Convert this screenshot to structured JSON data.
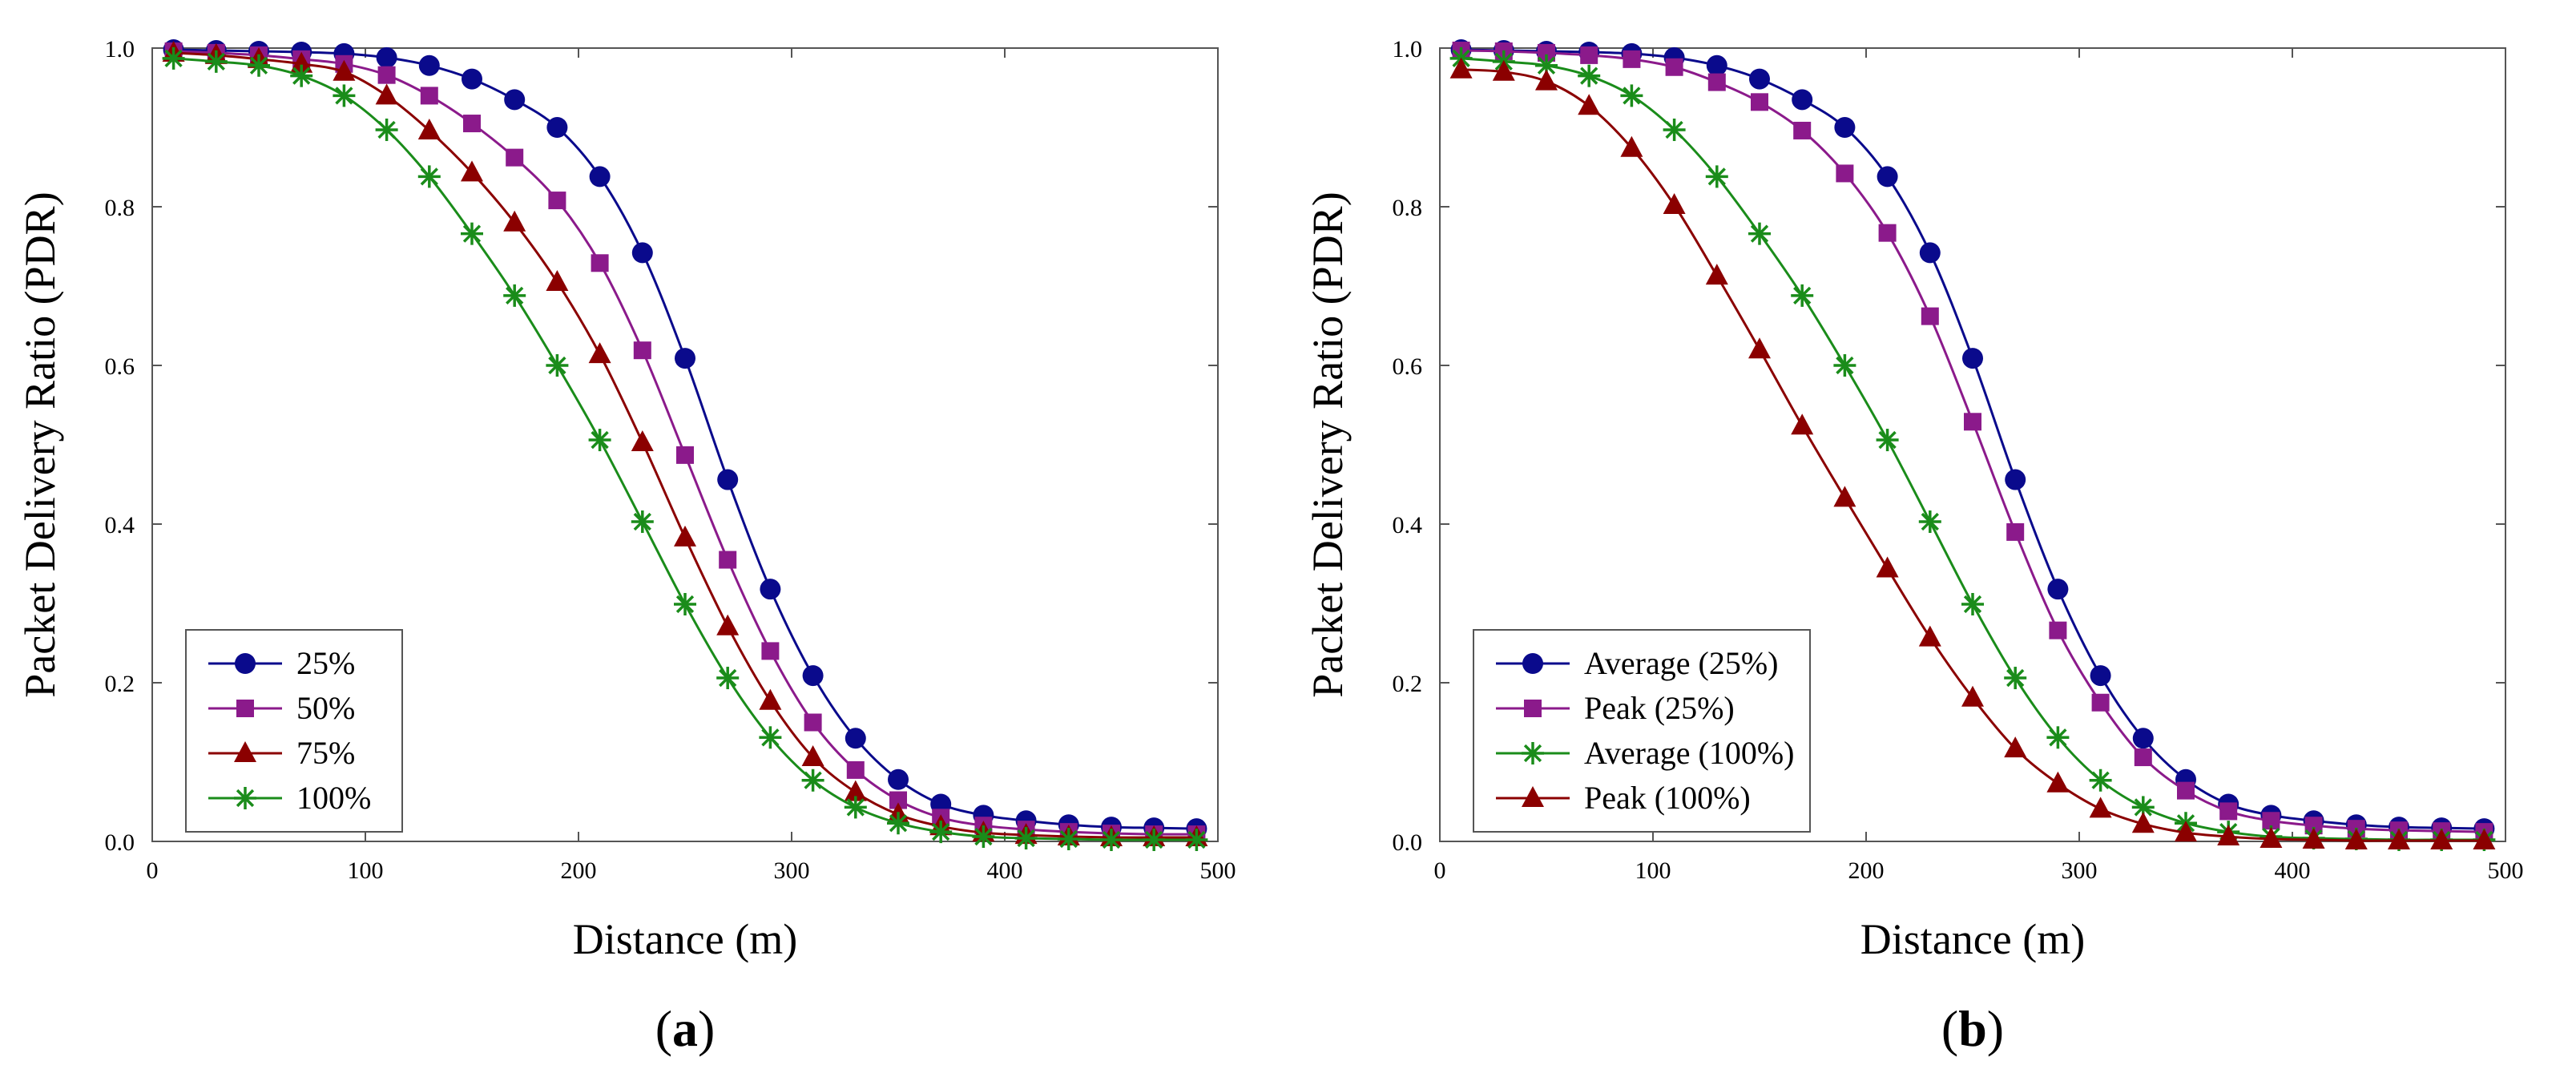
{
  "chart_data": [
    {
      "type": "line",
      "panel_label": "(a)",
      "xlabel": "Distance (m)",
      "ylabel": "Packet Delivery Ratio (PDR)",
      "xlim": [
        0,
        500
      ],
      "ylim": [
        0,
        1.0
      ],
      "x_ticks": [
        0,
        100,
        200,
        300,
        400,
        500
      ],
      "x_tick_labels": [
        "0",
        "100",
        "200",
        "300",
        "400",
        "500"
      ],
      "y_ticks": [
        0,
        0.2,
        0.4,
        0.6,
        0.8,
        1.0
      ],
      "y_tick_labels": [
        "0.0",
        "0.2",
        "0.4",
        "0.6",
        "0.8",
        "1.0"
      ],
      "legend_position": "bottom-left",
      "x": [
        10,
        30,
        50,
        70,
        90,
        110,
        130,
        150,
        170,
        190,
        210,
        230,
        250,
        270,
        290,
        310,
        330,
        350,
        370,
        390,
        410,
        430,
        450,
        470,
        490
      ],
      "series": [
        {
          "name": "25%",
          "color": "#0a0a8c",
          "marker": "circle",
          "values": [
            0.998,
            0.997,
            0.996,
            0.995,
            0.993,
            0.988,
            0.978,
            0.961,
            0.935,
            0.9,
            0.838,
            0.742,
            0.609,
            0.456,
            0.318,
            0.209,
            0.13,
            0.078,
            0.047,
            0.033,
            0.026,
            0.021,
            0.018,
            0.017,
            0.016
          ]
        },
        {
          "name": "50%",
          "color": "#8b1a8b",
          "marker": "square",
          "values": [
            0.996,
            0.994,
            0.991,
            0.986,
            0.98,
            0.966,
            0.94,
            0.905,
            0.862,
            0.808,
            0.729,
            0.619,
            0.487,
            0.355,
            0.24,
            0.15,
            0.09,
            0.052,
            0.03,
            0.02,
            0.015,
            0.012,
            0.01,
            0.009,
            0.009
          ]
        },
        {
          "name": "75%",
          "color": "#8b0000",
          "marker": "triangle",
          "values": [
            0.994,
            0.991,
            0.986,
            0.98,
            0.97,
            0.94,
            0.896,
            0.843,
            0.78,
            0.705,
            0.614,
            0.503,
            0.383,
            0.271,
            0.177,
            0.106,
            0.062,
            0.034,
            0.019,
            0.011,
            0.008,
            0.006,
            0.005,
            0.005,
            0.005
          ]
        },
        {
          "name": "100%",
          "color": "#1a8c1a",
          "marker": "star",
          "values": [
            0.987,
            0.983,
            0.978,
            0.965,
            0.94,
            0.897,
            0.838,
            0.766,
            0.688,
            0.6,
            0.506,
            0.403,
            0.299,
            0.206,
            0.131,
            0.077,
            0.043,
            0.023,
            0.012,
            0.006,
            0.004,
            0.003,
            0.002,
            0.002,
            0.002
          ]
        }
      ]
    },
    {
      "type": "line",
      "panel_label": "(b)",
      "xlabel": "Distance (m)",
      "ylabel": "Packet Delivery Ratio (PDR)",
      "xlim": [
        0,
        500
      ],
      "ylim": [
        0,
        1.0
      ],
      "x_ticks": [
        0,
        100,
        200,
        300,
        400,
        500
      ],
      "x_tick_labels": [
        "0",
        "100",
        "200",
        "300",
        "400",
        "500"
      ],
      "y_ticks": [
        0,
        0.2,
        0.4,
        0.6,
        0.8,
        1.0
      ],
      "y_tick_labels": [
        "0.0",
        "0.2",
        "0.4",
        "0.6",
        "0.8",
        "1.0"
      ],
      "legend_position": "bottom-left",
      "x": [
        10,
        30,
        50,
        70,
        90,
        110,
        130,
        150,
        170,
        190,
        210,
        230,
        250,
        270,
        290,
        310,
        330,
        350,
        370,
        390,
        410,
        430,
        450,
        470,
        490
      ],
      "series": [
        {
          "name": "Average (25%)",
          "color": "#0a0a8c",
          "marker": "circle",
          "values": [
            0.998,
            0.997,
            0.996,
            0.995,
            0.993,
            0.988,
            0.978,
            0.961,
            0.935,
            0.9,
            0.838,
            0.742,
            0.609,
            0.456,
            0.318,
            0.209,
            0.13,
            0.078,
            0.047,
            0.033,
            0.026,
            0.021,
            0.018,
            0.017,
            0.016
          ]
        },
        {
          "name": "Peak (25%)",
          "color": "#8b1a8b",
          "marker": "square",
          "values": [
            0.997,
            0.996,
            0.994,
            0.991,
            0.986,
            0.976,
            0.957,
            0.932,
            0.896,
            0.842,
            0.767,
            0.662,
            0.529,
            0.39,
            0.266,
            0.175,
            0.106,
            0.064,
            0.038,
            0.026,
            0.02,
            0.016,
            0.014,
            0.013,
            0.012
          ]
        },
        {
          "name": "Average (100%)",
          "color": "#1a8c1a",
          "marker": "star",
          "values": [
            0.987,
            0.983,
            0.978,
            0.965,
            0.94,
            0.897,
            0.838,
            0.766,
            0.688,
            0.6,
            0.506,
            0.403,
            0.299,
            0.206,
            0.131,
            0.077,
            0.043,
            0.023,
            0.012,
            0.006,
            0.004,
            0.003,
            0.002,
            0.002,
            0.002
          ]
        },
        {
          "name": "Peak (100%)",
          "color": "#8b0000",
          "marker": "triangle",
          "values": [
            0.973,
            0.97,
            0.958,
            0.927,
            0.874,
            0.802,
            0.713,
            0.62,
            0.524,
            0.433,
            0.344,
            0.257,
            0.181,
            0.117,
            0.073,
            0.041,
            0.022,
            0.011,
            0.006,
            0.003,
            0.002,
            0.001,
            0.001,
            0.001,
            0.001
          ]
        }
      ]
    }
  ]
}
